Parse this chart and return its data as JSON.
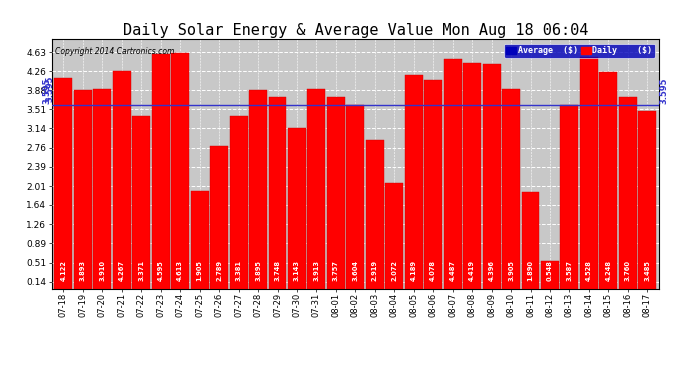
{
  "title": "Daily Solar Energy & Average Value Mon Aug 18 06:04",
  "copyright": "Copyright 2014 Cartronics.com",
  "categories": [
    "07-18",
    "07-19",
    "07-20",
    "07-21",
    "07-22",
    "07-23",
    "07-24",
    "07-25",
    "07-26",
    "07-27",
    "07-28",
    "07-29",
    "07-30",
    "07-31",
    "08-01",
    "08-02",
    "08-03",
    "08-04",
    "08-05",
    "08-06",
    "08-07",
    "08-08",
    "08-09",
    "08-10",
    "08-11",
    "08-12",
    "08-13",
    "08-14",
    "08-15",
    "08-16",
    "08-17"
  ],
  "values": [
    4.122,
    3.893,
    3.91,
    4.267,
    3.371,
    4.595,
    4.613,
    1.905,
    2.789,
    3.381,
    3.895,
    3.748,
    3.143,
    3.913,
    3.757,
    3.604,
    2.919,
    2.072,
    4.189,
    4.078,
    4.487,
    4.419,
    4.396,
    3.905,
    1.89,
    0.548,
    3.587,
    4.528,
    4.248,
    3.76,
    3.485
  ],
  "average": 3.595,
  "bar_color": "#ff0000",
  "average_line_color": "#3333cc",
  "background_color": "#ffffff",
  "plot_bg_color": "#c8c8c8",
  "grid_color": "#ffffff",
  "ylim_max": 4.88,
  "yticks": [
    0.14,
    0.51,
    0.89,
    1.26,
    1.64,
    2.01,
    2.39,
    2.76,
    3.14,
    3.51,
    3.88,
    4.26,
    4.63
  ],
  "title_fontsize": 11,
  "bar_edge_color": "#cc0000",
  "legend_avg_color": "#0000bb",
  "legend_daily_color": "#ff0000",
  "avg_label": "3.595"
}
